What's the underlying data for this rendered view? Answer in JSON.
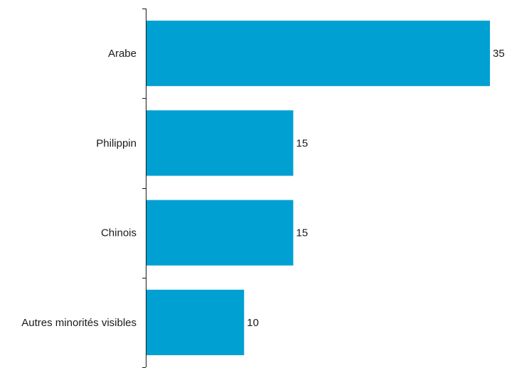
{
  "chart_data": {
    "type": "bar",
    "orientation": "horizontal",
    "categories": [
      "Arabe",
      "Philippin",
      "Chinois",
      "Autres minorités visibles"
    ],
    "values": [
      35,
      15,
      15,
      10
    ],
    "value_labels": [
      "35",
      "15",
      "15",
      "10"
    ],
    "title": "",
    "xlabel": "",
    "ylabel": "",
    "xlim": [
      0,
      35
    ],
    "grid": false,
    "legend": "none",
    "bar_color": "#00a0d2"
  }
}
